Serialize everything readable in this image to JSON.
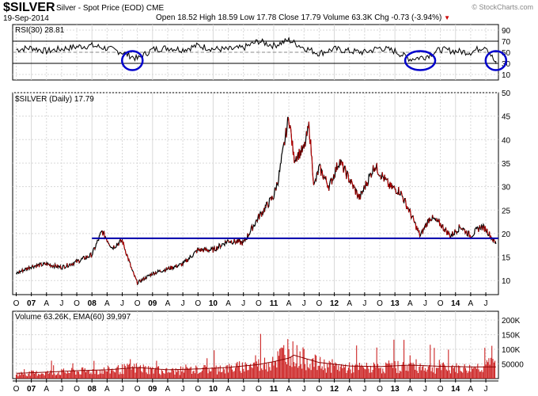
{
  "header": {
    "symbol": "$SILVER",
    "description": "Silver - Spot Price (EOD) CME",
    "date": "19-Sep-2014",
    "stats": "Open 18.52 High 18.59 Low 17.78 Close 17.79 Volume 63.3K Chg -0.73 (-3.94%)",
    "chg_arrow": "▼",
    "watermark": "© StockCharts.com"
  },
  "colors": {
    "price_line": "#000000",
    "down_ticks": "#cc0000",
    "support_line": "#0000aa",
    "rsi_circles": "#0000cc",
    "volume_bars": "#cc2222",
    "grid": "#d8d8d8"
  },
  "chart_data": [
    {
      "type": "line",
      "panel": "rsi",
      "title": "RSI(30) 28.81",
      "y_ticks": [
        10,
        30,
        50,
        70,
        90
      ],
      "ylim": [
        0,
        100
      ],
      "reference_lines": [
        30,
        70
      ],
      "x": [
        "2006-10",
        "2007-01",
        "2007-04",
        "2007-07",
        "2007-10",
        "2008-01",
        "2008-04",
        "2008-07",
        "2008-10",
        "2009-01",
        "2009-04",
        "2009-07",
        "2009-10",
        "2010-01",
        "2010-04",
        "2010-07",
        "2010-10",
        "2011-01",
        "2011-04",
        "2011-07",
        "2011-10",
        "2012-01",
        "2012-04",
        "2012-07",
        "2012-10",
        "2013-01",
        "2013-04",
        "2013-07",
        "2013-10",
        "2014-01",
        "2014-04",
        "2014-07",
        "2014-09"
      ],
      "values": [
        55,
        58,
        52,
        56,
        60,
        62,
        57,
        50,
        38,
        55,
        58,
        55,
        62,
        56,
        55,
        58,
        70,
        62,
        72,
        58,
        48,
        56,
        52,
        50,
        58,
        52,
        38,
        42,
        55,
        52,
        50,
        62,
        28.81
      ],
      "highlights": [
        "2008-09",
        "2013-06",
        "2014-09"
      ]
    },
    {
      "type": "line",
      "panel": "price",
      "title": "$SILVER (Daily) 17.79",
      "y_ticks": [
        10,
        15,
        20,
        25,
        30,
        35,
        40,
        45,
        50
      ],
      "ylim": [
        7,
        50
      ],
      "support_level": 19,
      "x": [
        "2006-10",
        "2007-01",
        "2007-04",
        "2007-07",
        "2007-10",
        "2008-01",
        "2008-03",
        "2008-05",
        "2008-07",
        "2008-09",
        "2008-10",
        "2009-01",
        "2009-04",
        "2009-07",
        "2009-10",
        "2010-01",
        "2010-04",
        "2010-07",
        "2010-10",
        "2011-01",
        "2011-02",
        "2011-04",
        "2011-05",
        "2011-07",
        "2011-08",
        "2011-09",
        "2011-10",
        "2011-12",
        "2012-02",
        "2012-04",
        "2012-06",
        "2012-09",
        "2012-10",
        "2012-12",
        "2013-02",
        "2013-04",
        "2013-06",
        "2013-08",
        "2013-10",
        "2013-12",
        "2014-02",
        "2014-04",
        "2014-06",
        "2014-07",
        "2014-09"
      ],
      "values": [
        11.5,
        13.0,
        13.5,
        12.8,
        14.0,
        15.5,
        20.5,
        17.0,
        18.5,
        12.0,
        9.5,
        11.5,
        12.5,
        13.5,
        16.5,
        16.5,
        18.5,
        18.0,
        23.5,
        28.0,
        32.0,
        45.0,
        36.0,
        38.0,
        43.0,
        30.0,
        34.0,
        30.0,
        35.5,
        31.5,
        27.5,
        34.5,
        33.0,
        30.0,
        29.0,
        24.5,
        19.5,
        23.5,
        22.0,
        19.5,
        21.5,
        19.5,
        21.5,
        21.0,
        17.79
      ]
    },
    {
      "type": "bar",
      "panel": "volume",
      "title": "Volume 63.26K, EMA(60) 39,997",
      "y_tick_labels": [
        "50000",
        "100K",
        "150K",
        "200K"
      ],
      "y_ticks": [
        50000,
        100000,
        150000,
        200000
      ],
      "ylim": [
        0,
        230000
      ],
      "x": [
        "2006-10",
        "2007-04",
        "2007-10",
        "2008-04",
        "2008-10",
        "2009-04",
        "2009-10",
        "2010-04",
        "2010-10",
        "2011-01",
        "2011-04",
        "2011-05",
        "2011-10",
        "2012-04",
        "2012-10",
        "2013-04",
        "2013-10",
        "2014-04",
        "2014-09"
      ],
      "values": [
        20000,
        25000,
        30000,
        35000,
        45000,
        30000,
        38000,
        42000,
        60000,
        70000,
        130000,
        100000,
        60000,
        45000,
        45000,
        55000,
        45000,
        42000,
        63260
      ],
      "ema_values": [
        18000,
        22000,
        27000,
        30000,
        38000,
        30000,
        33000,
        38000,
        48000,
        58000,
        70000,
        80000,
        55000,
        43000,
        41000,
        46000,
        42000,
        40000,
        39997
      ]
    }
  ],
  "x_axis": {
    "labels": [
      "O",
      "07",
      "A",
      "J",
      "O",
      "08",
      "A",
      "J",
      "O",
      "09",
      "A",
      "J",
      "O",
      "10",
      "A",
      "J",
      "O",
      "11",
      "A",
      "J",
      "O",
      "12",
      "A",
      "J",
      "O",
      "13",
      "A",
      "J",
      "O",
      "14",
      "A",
      "J"
    ],
    "bold_labels": [
      "07",
      "08",
      "09",
      "10",
      "11",
      "12",
      "13",
      "14"
    ]
  }
}
